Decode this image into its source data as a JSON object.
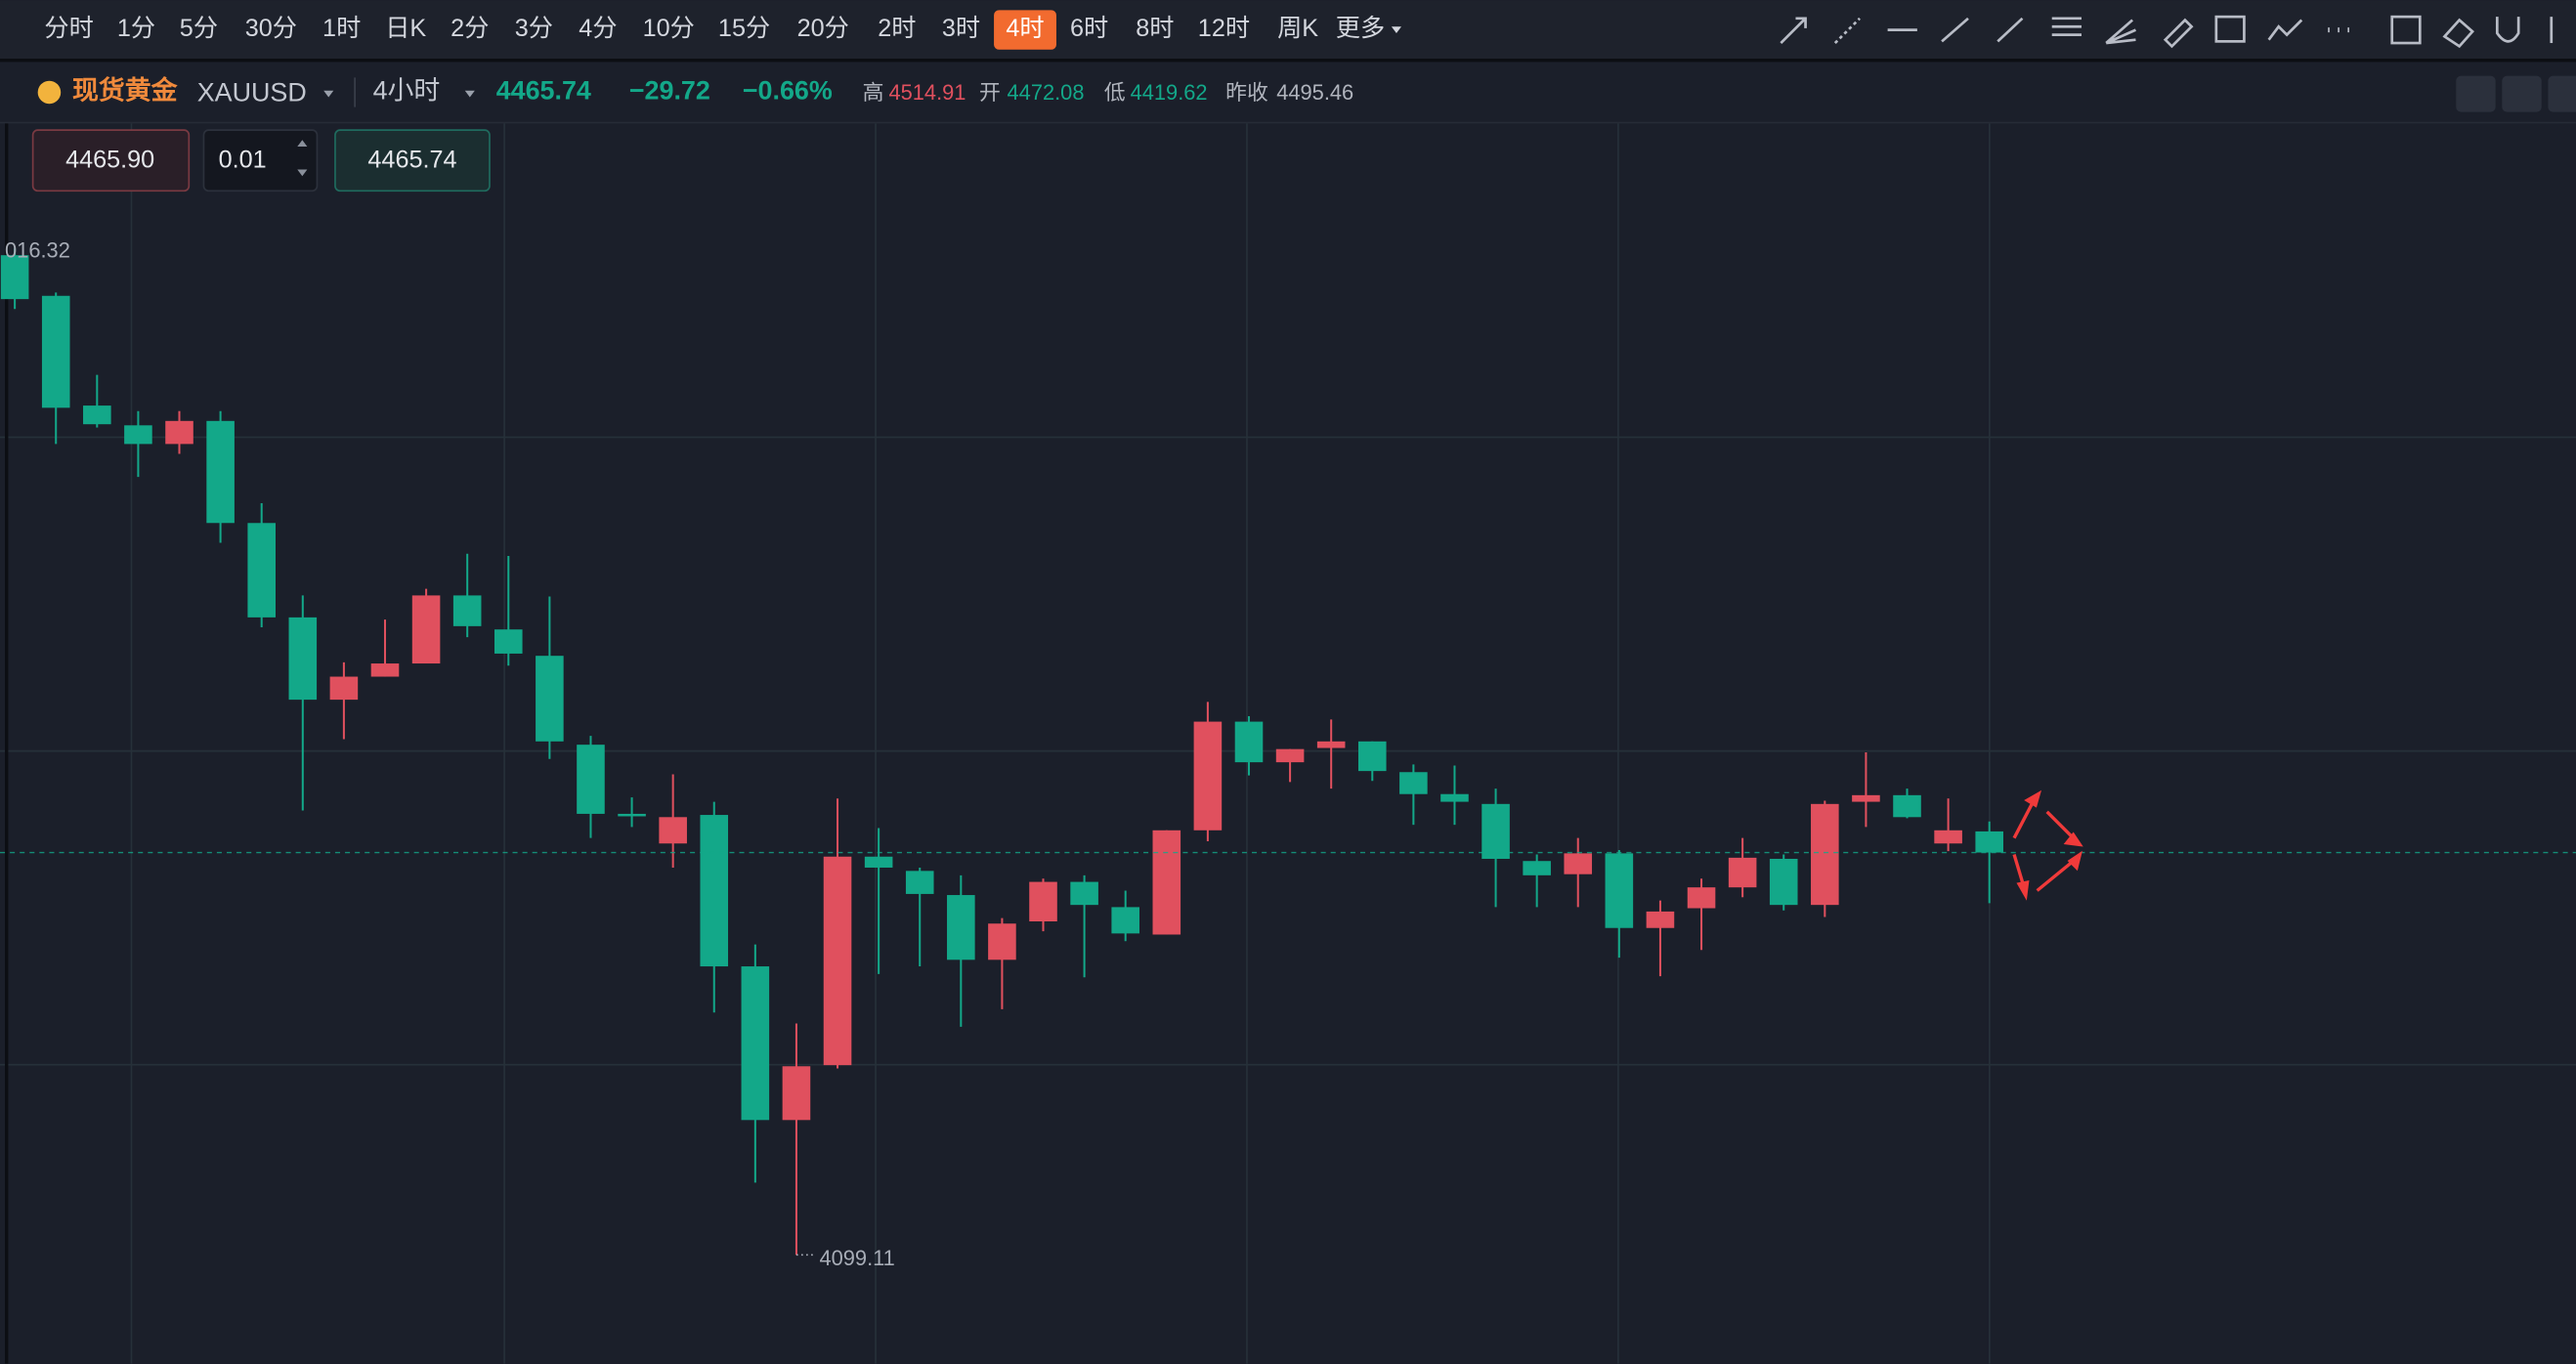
{
  "toolbar": {
    "intervals": [
      "分时",
      "1分",
      "5分",
      "30分",
      "1时",
      "日K",
      "2分",
      "3分",
      "4分",
      "10分",
      "15分",
      "20分",
      "2时",
      "3时",
      "4时",
      "6时",
      "8时",
      "12时",
      "周K",
      "更多"
    ],
    "active_index": 14
  },
  "header": {
    "name": "现货黄金",
    "symbol": "XAUUSD",
    "period": "4小时",
    "price": "4465.74",
    "change": "−29.72",
    "change_pct": "−0.66%",
    "high_label": "高",
    "high": "4514.91",
    "open_label": "开",
    "open": "4472.08",
    "low_label": "低",
    "low": "4419.62",
    "prev_close_label": "昨收",
    "prev_close": "4495.46"
  },
  "order": {
    "sell": "4465.90",
    "qty": "0.01",
    "buy": "4465.74"
  },
  "chart_data": {
    "type": "candlestick",
    "ylim": [
      4000,
      5130
    ],
    "up_color": "#e0505e",
    "down_color": "#13a889",
    "high_label": "016.32",
    "low_label": "4099.11",
    "open": [
      5010,
      4973,
      4873,
      4855,
      4838,
      4859,
      4766,
      4680,
      4605,
      4626,
      4638,
      4700,
      4669,
      4645,
      4564,
      4501,
      4474,
      4500,
      4362,
      4222,
      4272,
      4462,
      4449,
      4427,
      4368,
      4403,
      4439,
      4416,
      4391,
      4486,
      4585,
      4548,
      4561,
      4567,
      4539,
      4519,
      4510,
      4458,
      4446,
      4465,
      4397,
      4415,
      4434,
      4460,
      4418,
      4512,
      4518,
      4474,
      4485
    ],
    "high": [
      5016,
      4976,
      4901,
      4868,
      4868,
      4868,
      4784,
      4700,
      4639,
      4678,
      4706,
      4738,
      4736,
      4699,
      4572,
      4516,
      4537,
      4512,
      4382,
      4310,
      4515,
      4488,
      4452,
      4445,
      4406,
      4442,
      4445,
      4431,
      4486,
      4603,
      4590,
      4560,
      4587,
      4567,
      4546,
      4545,
      4524,
      4464,
      4479,
      4468,
      4422,
      4442,
      4479,
      4464,
      4513,
      4557,
      4524,
      4515,
      4494
    ],
    "low": [
      4961,
      4838,
      4853,
      4808,
      4829,
      4748,
      4671,
      4504,
      4569,
      4626,
      4638,
      4662,
      4636,
      4551,
      4479,
      4489,
      4452,
      4320,
      4165,
      4099.11,
      4269,
      4355,
      4362,
      4307,
      4323,
      4394,
      4352,
      4385,
      4391,
      4476,
      4536,
      4530,
      4524,
      4531,
      4491,
      4491,
      4416,
      4416,
      4416,
      4370,
      4353,
      4377,
      4425,
      4413,
      4407,
      4489,
      4497,
      4467,
      4419.62
    ],
    "close": [
      4970,
      4871,
      4856,
      4838,
      4859,
      4766,
      4680,
      4605,
      4626,
      4638,
      4700,
      4672,
      4647,
      4567,
      4501,
      4500,
      4498,
      4362,
      4222,
      4271,
      4462,
      4452,
      4428,
      4368,
      4401,
      4439,
      4418,
      4392,
      4486,
      4585,
      4548,
      4560,
      4567,
      4540,
      4519,
      4512,
      4460,
      4445,
      4465,
      4397,
      4412,
      4434,
      4461,
      4418,
      4510,
      4518,
      4498,
      4486,
      4465.74
    ]
  }
}
